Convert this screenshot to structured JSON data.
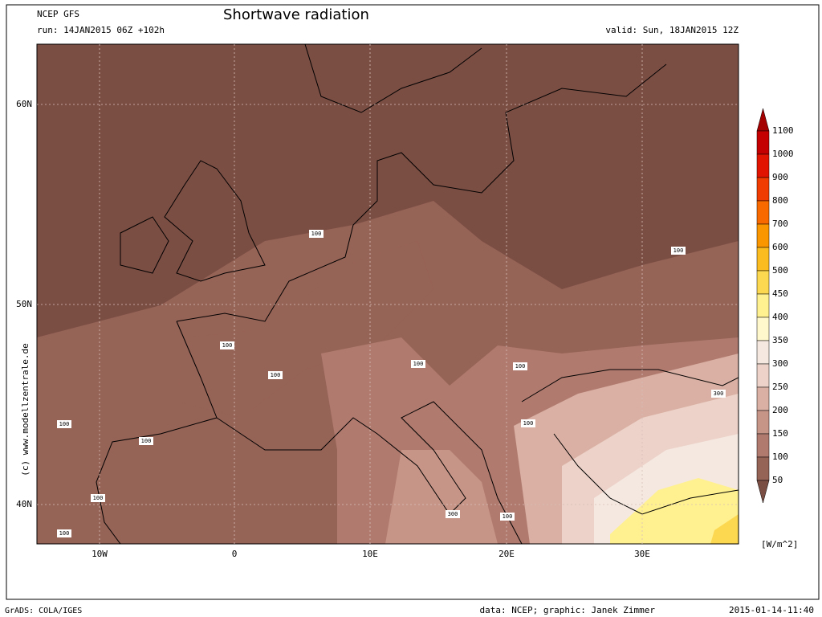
{
  "header": {
    "model": "NCEP GFS",
    "run": "run: 14JAN2015 06Z +102h",
    "title": "Shortwave radiation",
    "valid": "valid: Sun, 18JAN2015 12Z"
  },
  "map": {
    "lat_labels": [
      "60N",
      "50N",
      "40N"
    ],
    "lon_labels": [
      "10W",
      "0",
      "10E",
      "20E",
      "30E"
    ],
    "contour_labels": [
      100,
      100,
      100,
      100,
      100,
      100,
      100,
      100,
      100,
      100,
      100,
      300,
      100,
      300
    ],
    "watermark": "(c) www.modellzentrale.de"
  },
  "colorbar": {
    "levels": [
      1100,
      1000,
      900,
      800,
      700,
      600,
      500,
      450,
      400,
      350,
      300,
      250,
      200,
      150,
      100,
      50
    ],
    "colors": [
      "#a50000",
      "#c40000",
      "#e01400",
      "#f03c00",
      "#f86a00",
      "#fa9600",
      "#fbbc20",
      "#fcd850",
      "#fff090",
      "#fff8cc",
      "#f5e8e0",
      "#ecd2c8",
      "#d9b0a3",
      "#c79588",
      "#b07a6f",
      "#966357",
      "#7b4e44"
    ],
    "unit": "[W/m^2]"
  },
  "footer": {
    "left": "GrADS: COLA/IGES",
    "credit": "data: NCEP; graphic: Janek Zimmer",
    "timestamp": "2015-01-14-11:40"
  }
}
